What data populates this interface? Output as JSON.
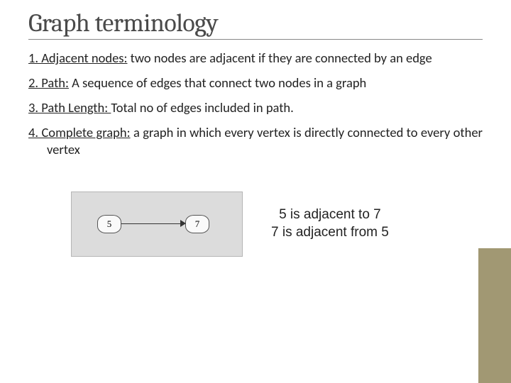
{
  "title": "Graph terminology",
  "definitions": {
    "d1_term": "1. Adjacent nodes:",
    "d1_text": " two nodes are adjacent if they are connected by an edge",
    "d2_term": "2. Path:",
    "d2_text": " A sequence of edges that connect two nodes in a graph",
    "d3_term": "3. Path Length: ",
    "d3_text": "Total no of edges included in path.",
    "d4_term": "4. Complete graph:",
    "d4_text": " a graph in which every vertex is directly connected to every other vertex"
  },
  "diagram": {
    "type": "network",
    "background_color": "#dcdcdc",
    "border_color": "#b5b5b5",
    "node_bg": "#fafafa",
    "node_border": "#555555",
    "nodes": [
      {
        "id": "a",
        "label": "5"
      },
      {
        "id": "b",
        "label": "7"
      }
    ],
    "edges": [
      {
        "from": "a",
        "to": "b",
        "directed": true
      }
    ]
  },
  "caption": {
    "line1": "5 is adjacent to 7",
    "line2": "7 is adjacent from 5"
  },
  "sidebar_color": "#a19873"
}
